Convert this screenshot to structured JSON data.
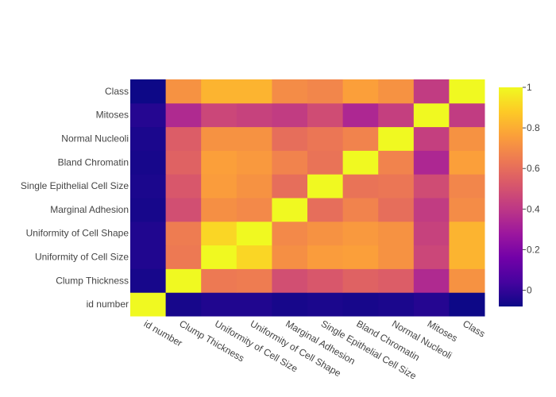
{
  "chart_data": {
    "type": "heatmap",
    "title": "",
    "labels": [
      "id number",
      "Clump Thickness",
      "Uniformity of Cell Size",
      "Uniformity of Cell Shape",
      "Marginal Adhesion",
      "Single Epithelial Cell Size",
      "Bland Chromatin",
      "Normal Nucleoli",
      "Mitoses",
      "Class"
    ],
    "values": [
      [
        1.0,
        -0.06,
        -0.04,
        -0.04,
        -0.06,
        -0.05,
        -0.06,
        -0.05,
        -0.03,
        -0.08
      ],
      [
        -0.06,
        1.0,
        0.64,
        0.65,
        0.49,
        0.52,
        0.56,
        0.54,
        0.35,
        0.72
      ],
      [
        -0.04,
        0.64,
        1.0,
        0.91,
        0.71,
        0.75,
        0.76,
        0.72,
        0.46,
        0.82
      ],
      [
        -0.04,
        0.65,
        0.91,
        1.0,
        0.69,
        0.72,
        0.74,
        0.72,
        0.44,
        0.82
      ],
      [
        -0.06,
        0.49,
        0.71,
        0.69,
        1.0,
        0.6,
        0.67,
        0.6,
        0.42,
        0.7
      ],
      [
        -0.05,
        0.52,
        0.75,
        0.72,
        0.6,
        1.0,
        0.62,
        0.63,
        0.48,
        0.68
      ],
      [
        -0.06,
        0.56,
        0.76,
        0.74,
        0.67,
        0.62,
        1.0,
        0.67,
        0.34,
        0.76
      ],
      [
        -0.05,
        0.54,
        0.72,
        0.72,
        0.6,
        0.63,
        0.67,
        1.0,
        0.43,
        0.72
      ],
      [
        -0.03,
        0.35,
        0.46,
        0.44,
        0.42,
        0.48,
        0.34,
        0.43,
        1.0,
        0.42
      ],
      [
        -0.08,
        0.72,
        0.82,
        0.82,
        0.7,
        0.68,
        0.76,
        0.72,
        0.42,
        1.0
      ]
    ],
    "zmin": -0.08,
    "zmax": 1.0,
    "colorscale": "plasma",
    "colorbar_ticks": [
      "0",
      "0.2",
      "0.4",
      "0.6",
      "0.8",
      "1"
    ],
    "colorbar_tick_values": [
      0,
      0.2,
      0.4,
      0.6,
      0.8,
      1.0
    ]
  }
}
